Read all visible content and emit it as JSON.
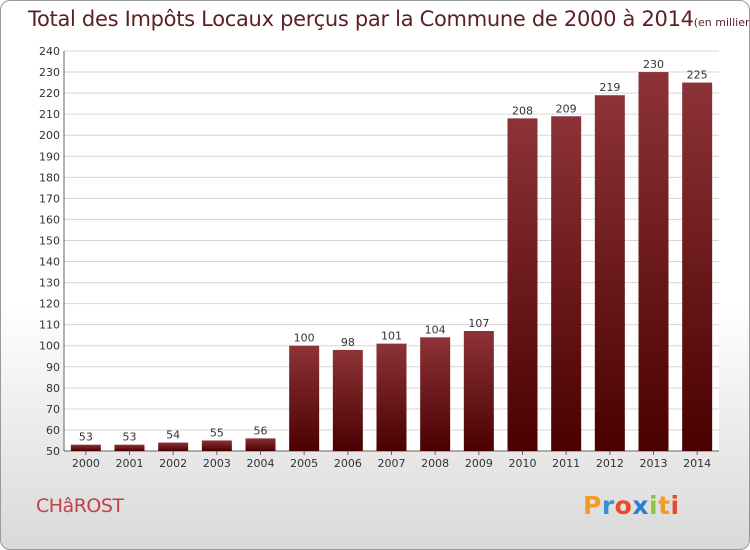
{
  "chart_data": {
    "type": "bar",
    "title": "Total des Impôts Locaux perçus par la Commune de 2000 à 2014",
    "unit_note": "(en milliers d'€)",
    "categories": [
      "2000",
      "2001",
      "2002",
      "2003",
      "2004",
      "2005",
      "2006",
      "2007",
      "2008",
      "2009",
      "2010",
      "2011",
      "2012",
      "2013",
      "2014"
    ],
    "values": [
      53,
      53,
      54,
      55,
      56,
      100,
      98,
      101,
      104,
      107,
      208,
      209,
      219,
      230,
      225
    ],
    "data_labels": [
      "53",
      "53",
      "54",
      "55",
      "56",
      "100",
      "98",
      "101",
      "104",
      "107",
      "208",
      "209",
      "219",
      "230",
      "225"
    ],
    "ylim": [
      50,
      240
    ],
    "yticks": [
      "50",
      "60",
      "70",
      "80",
      "90",
      "100",
      "110",
      "120",
      "130",
      "140",
      "150",
      "160",
      "170",
      "180",
      "190",
      "200",
      "210",
      "220",
      "230",
      "240"
    ],
    "grid": true,
    "bar_color": "#7a1e22",
    "xlabel": "",
    "ylabel": ""
  },
  "footer": {
    "commune": "CHâROST",
    "logo_letters": [
      "P",
      "r",
      "o",
      "x",
      "i",
      "t",
      "i"
    ],
    "logo_colors": [
      "#f39c1f",
      "#3a8fd0",
      "#e84a2a",
      "#2a7fd0",
      "#8cc63f",
      "#f39c1f",
      "#e84a2a"
    ]
  }
}
